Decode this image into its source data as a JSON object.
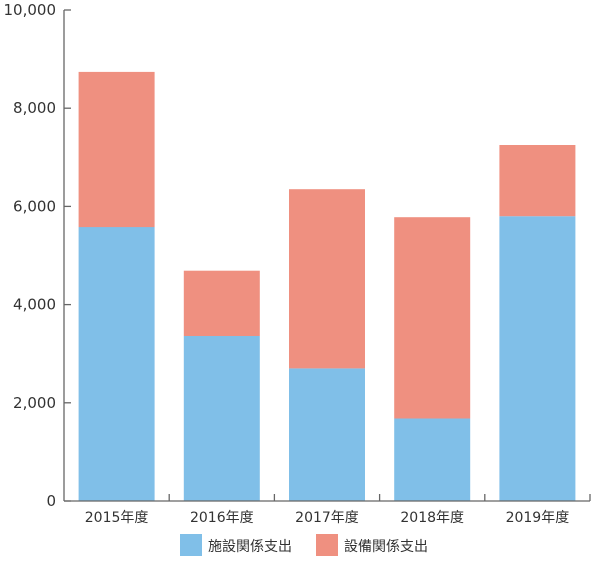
{
  "chart_data": {
    "type": "bar",
    "stacked": true,
    "categories": [
      "2015年度",
      "2016年度",
      "2017年度",
      "2018年度",
      "2019年度"
    ],
    "series": [
      {
        "name": "施設関係支出",
        "color": "#80bfe8",
        "values": [
          5580,
          3360,
          2700,
          1680,
          5800
        ]
      },
      {
        "name": "設備関係支出",
        "color": "#ef9080",
        "values": [
          3160,
          1330,
          3650,
          4100,
          1450
        ]
      }
    ],
    "ylim": [
      0,
      10000
    ],
    "yticks": [
      0,
      2000,
      4000,
      6000,
      8000,
      10000
    ],
    "ytick_labels": [
      "0",
      "2,000",
      "4,000",
      "6,000",
      "8,000",
      "10,000"
    ],
    "xlabel": "",
    "ylabel": "",
    "title": "",
    "grid": false,
    "legend": "bottom"
  }
}
